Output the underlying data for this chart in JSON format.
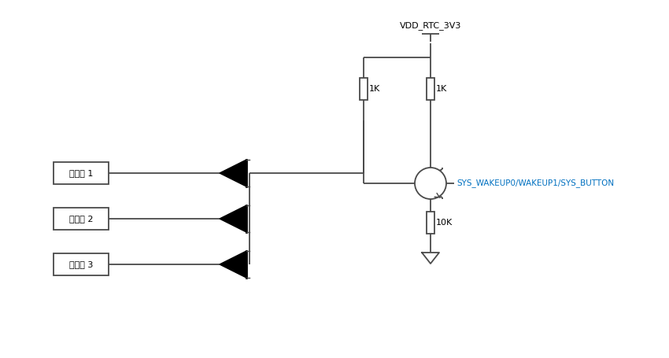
{
  "bg_color": "#ffffff",
  "line_color": "#4a4a4a",
  "text_color": "#000000",
  "blue_text_color": "#0070c0",
  "fig_width": 8.5,
  "fig_height": 4.55,
  "vdd_label": "VDD_RTC_3V3",
  "wakeup_label": "SYS_WAKEUP0/WAKEUP1/SYS_BUTTON",
  "res1_label": "1K",
  "res2_label": "1K",
  "res3_label": "10K",
  "box_labels": [
    "唤醒源 1",
    "唤醒源 2",
    "唤醒源 3"
  ]
}
